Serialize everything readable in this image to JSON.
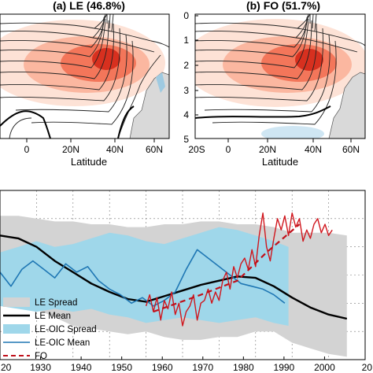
{
  "chart_data": [
    {
      "type": "heatmap",
      "title": "(a) LE (46.8%)",
      "xlabel": "Latitude",
      "x_ticks": [
        "0",
        "20N",
        "40N",
        "60N"
      ],
      "y_ticks": [],
      "xlim": [
        -20,
        70
      ],
      "ylim": [
        5,
        0
      ],
      "colors": {
        "warm": "#d7301f",
        "cool": "#9ecae1",
        "land": "#d9d9d9"
      }
    },
    {
      "type": "heatmap",
      "title": "(b) FO (51.7%)",
      "xlabel": "Latitude",
      "x_ticks": [
        "20S",
        "0",
        "20N",
        "40N",
        "60N"
      ],
      "y_ticks": [
        "0",
        "1",
        "2",
        "3",
        "4",
        "5"
      ],
      "xlim": [
        -20,
        70
      ],
      "ylim": [
        5,
        0
      ],
      "colors": {
        "warm": "#d7301f",
        "cool": "#9ecae1",
        "land": "#d9d9d9"
      }
    },
    {
      "type": "line",
      "x_ticks": [
        "20",
        "1930",
        "1940",
        "1950",
        "1960",
        "1970",
        "1980",
        "1990",
        "2000",
        "20"
      ],
      "xlim": [
        1920,
        2020
      ],
      "ylim": [
        -3,
        3
      ],
      "grid": true,
      "legend": "bottom-left",
      "series": [
        {
          "name": "LE Spread",
          "kind": "band",
          "color": "#d3d3d3",
          "x": [
            1920,
            1925,
            1930,
            1935,
            1940,
            1945,
            1950,
            1955,
            1960,
            1965,
            1970,
            1975,
            1980,
            1985,
            1990,
            1995,
            2000,
            2005,
            2010,
            2015
          ],
          "lower": [
            -0.2,
            -0.6,
            -1.2,
            -1.5,
            -1.8,
            -1.9,
            -2.0,
            -2.1,
            -2.0,
            -2.2,
            -2.3,
            -2.3,
            -2.2,
            -2.2,
            -2.0,
            -2.0,
            -2.4,
            -2.6,
            -2.8,
            -2.9
          ],
          "upper": [
            2.1,
            2.1,
            2.0,
            1.9,
            1.9,
            1.8,
            1.8,
            1.7,
            1.7,
            1.8,
            1.8,
            1.9,
            1.9,
            1.8,
            1.8,
            1.7,
            1.5,
            1.5,
            1.5,
            1.4
          ]
        },
        {
          "name": "LE Mean",
          "color": "#000000",
          "width": 2.4,
          "x": [
            1920,
            1925,
            1930,
            1935,
            1940,
            1945,
            1950,
            1955,
            1960,
            1965,
            1970,
            1975,
            1980,
            1985,
            1990,
            1995,
            2000,
            2005,
            2010,
            2015
          ],
          "y": [
            1.4,
            1.3,
            1.0,
            0.5,
            0.1,
            -0.3,
            -0.6,
            -0.85,
            -0.95,
            -0.75,
            -0.55,
            -0.35,
            -0.2,
            -0.05,
            -0.1,
            -0.4,
            -0.8,
            -1.15,
            -1.4,
            -1.55
          ]
        },
        {
          "name": "LE-OIC Spread",
          "kind": "band",
          "color": "#9fd7ea",
          "x": [
            1920,
            1925,
            1930,
            1935,
            1940,
            1945,
            1950,
            1955,
            1960,
            1965,
            1970,
            1975,
            1980,
            1985,
            1990,
            1995,
            1999
          ],
          "lower": [
            -1.1,
            -1.2,
            -1.3,
            -1.2,
            -1.3,
            -1.2,
            -1.4,
            -1.5,
            -1.7,
            -1.6,
            -1.5,
            -1.6,
            -1.7,
            -1.6,
            -1.5,
            -1.7,
            -1.8
          ],
          "upper": [
            0.8,
            1.0,
            1.2,
            1.0,
            1.1,
            1.3,
            1.5,
            1.4,
            1.2,
            1.1,
            1.3,
            1.5,
            1.7,
            1.6,
            1.4,
            1.2,
            1.0
          ]
        },
        {
          "name": "LE-OIC Mean",
          "color": "#1f77b4",
          "width": 1.6,
          "x": [
            1920,
            1923,
            1926,
            1929,
            1932,
            1935,
            1938,
            1941,
            1944,
            1947,
            1950,
            1953,
            1956,
            1959,
            1962,
            1965,
            1968,
            1971,
            1974,
            1977,
            1980,
            1983,
            1986,
            1989,
            1992,
            1995,
            1998
          ],
          "y": [
            0.1,
            -0.4,
            0.2,
            0.5,
            0.2,
            -0.1,
            0.4,
            0.1,
            0.3,
            -0.2,
            -0.5,
            -0.7,
            -1.0,
            -0.8,
            -1.1,
            -0.9,
            -0.6,
            0.2,
            0.9,
            0.6,
            0.3,
            0.0,
            -0.3,
            -0.4,
            -0.5,
            -0.7,
            -1.0
          ]
        },
        {
          "name": "",
          "color": "#d0161d",
          "width": 1.4,
          "x": [
            1960,
            1961,
            1962,
            1963,
            1964,
            1965,
            1966,
            1967,
            1968,
            1969,
            1970,
            1971,
            1972,
            1973,
            1974,
            1975,
            1976,
            1977,
            1978,
            1979,
            1980,
            1981,
            1982,
            1983,
            1984,
            1985,
            1986,
            1987,
            1988,
            1989,
            1990,
            1991,
            1992,
            1993,
            1994,
            1995,
            1996,
            1997,
            1998,
            1999,
            2000,
            2001,
            2002,
            2003,
            2004,
            2005,
            2006,
            2007,
            2008,
            2009,
            2010,
            2011
          ],
          "y": [
            -1.1,
            -0.7,
            -1.3,
            -0.8,
            -1.6,
            -0.9,
            -1.2,
            -0.6,
            -1.4,
            -1.0,
            -1.8,
            -1.3,
            -1.1,
            -0.7,
            -1.6,
            -1.0,
            -0.9,
            -0.5,
            -1.0,
            -0.6,
            -0.9,
            -0.2,
            0.1,
            -0.5,
            0.3,
            -0.1,
            0.4,
            0.6,
            0.2,
            0.9,
            0.3,
            1.4,
            2.2,
            1.0,
            0.5,
            1.3,
            2.0,
            1.6,
            2.1,
            1.4,
            2.2,
            1.7,
            2.0,
            1.2,
            1.6,
            1.3,
            1.8,
            2.0,
            1.5,
            1.8,
            1.4,
            1.6
          ]
        },
        {
          "name": "FO",
          "kind": "dashed",
          "color": "#c0101a",
          "width": 2.2,
          "x": [
            1962,
            1975,
            1985,
            1993,
            2002
          ],
          "y": [
            -1.3,
            -0.7,
            -0.2,
            0.8,
            1.8
          ]
        }
      ]
    }
  ]
}
